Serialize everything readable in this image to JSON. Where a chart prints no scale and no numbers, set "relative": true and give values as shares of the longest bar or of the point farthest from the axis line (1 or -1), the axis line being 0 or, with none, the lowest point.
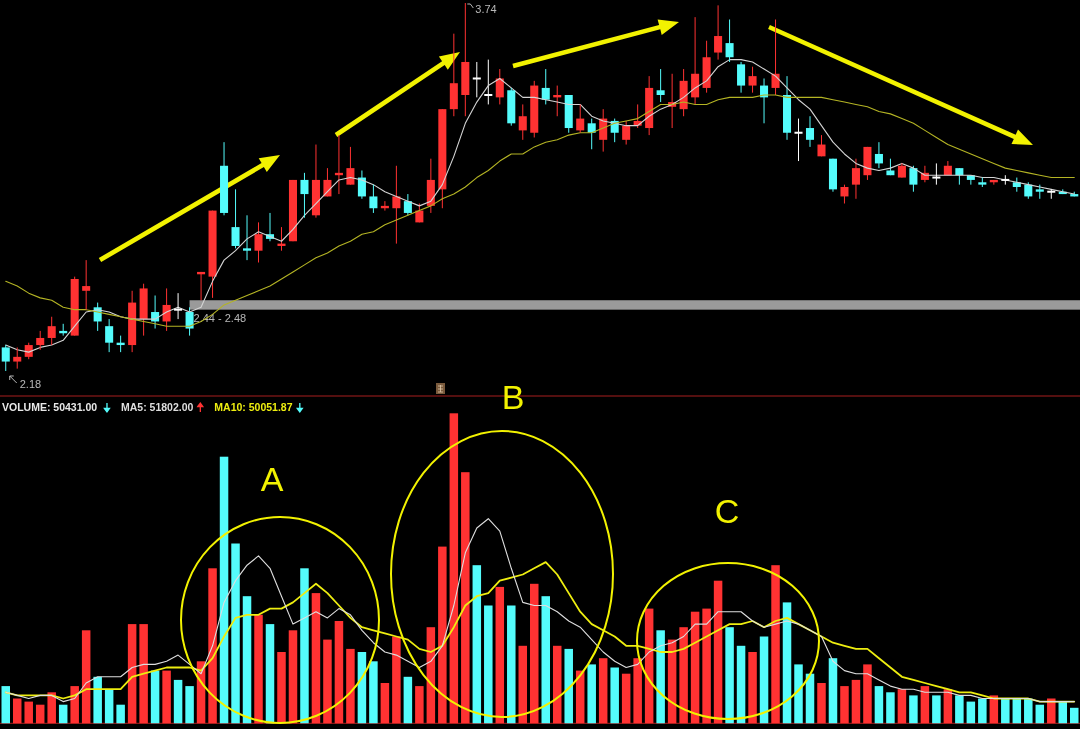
{
  "chart_data": [
    {
      "type": "candlestick",
      "categories": [
        null,
        null,
        null,
        null,
        null,
        null,
        null,
        null,
        null,
        null,
        null,
        null,
        null,
        null,
        null,
        null,
        null,
        null,
        null,
        null,
        null,
        null,
        null,
        null,
        null,
        null,
        null,
        null,
        null,
        null,
        null,
        null,
        null,
        null,
        null,
        null,
        null,
        null,
        null,
        null,
        null,
        null,
        null,
        null,
        null,
        null,
        null,
        null,
        null,
        null,
        null,
        null,
        null,
        null,
        null,
        null,
        null,
        null,
        null,
        null,
        null,
        null,
        null,
        null,
        null,
        null,
        null,
        null,
        null,
        null,
        null,
        null,
        null,
        null,
        null,
        null,
        null,
        null,
        null,
        null,
        null,
        null,
        null,
        null,
        null,
        null,
        null,
        null,
        null,
        null,
        null,
        null,
        null,
        null
      ],
      "ohlc": [
        [
          2.28,
          2.29,
          2.18,
          2.22
        ],
        [
          2.22,
          2.28,
          2.19,
          2.24
        ],
        [
          2.24,
          2.3,
          2.23,
          2.29
        ],
        [
          2.29,
          2.35,
          2.27,
          2.32
        ],
        [
          2.32,
          2.41,
          2.29,
          2.37
        ],
        [
          2.35,
          2.38,
          2.33,
          2.34
        ],
        [
          2.33,
          2.58,
          2.33,
          2.57
        ],
        [
          2.52,
          2.65,
          2.44,
          2.54
        ],
        [
          2.45,
          2.47,
          2.35,
          2.39
        ],
        [
          2.37,
          2.4,
          2.26,
          2.3
        ],
        [
          2.3,
          2.33,
          2.26,
          2.29
        ],
        [
          2.29,
          2.52,
          2.26,
          2.47
        ],
        [
          2.4,
          2.55,
          2.33,
          2.53
        ],
        [
          2.43,
          2.5,
          2.36,
          2.39
        ],
        [
          2.39,
          2.53,
          2.35,
          2.46
        ],
        [
          2.44,
          2.51,
          2.4,
          2.44
        ],
        [
          2.43,
          2.45,
          2.33,
          2.36
        ],
        [
          2.59,
          2.6,
          2.48,
          2.6
        ],
        [
          2.58,
          2.86,
          2.49,
          2.86
        ],
        [
          3.05,
          3.15,
          2.84,
          2.85
        ],
        [
          2.79,
          2.95,
          2.7,
          2.71
        ],
        [
          2.7,
          2.84,
          2.65,
          2.69
        ],
        [
          2.69,
          2.81,
          2.64,
          2.76
        ],
        [
          2.76,
          2.85,
          2.73,
          2.74
        ],
        [
          2.71,
          2.79,
          2.69,
          2.72
        ],
        [
          2.73,
          2.99,
          2.73,
          2.99
        ],
        [
          2.99,
          3.02,
          2.83,
          2.93
        ],
        [
          2.84,
          3.14,
          2.83,
          2.99
        ],
        [
          2.92,
          3.04,
          2.92,
          2.99
        ],
        [
          3.01,
          3.18,
          2.93,
          3.02
        ],
        [
          2.97,
          3.13,
          2.97,
          3.04
        ],
        [
          3.0,
          3.03,
          2.91,
          2.92
        ],
        [
          2.92,
          2.97,
          2.85,
          2.87
        ],
        [
          2.87,
          2.9,
          2.86,
          2.88
        ],
        [
          2.87,
          3.05,
          2.72,
          2.92
        ],
        [
          2.9,
          2.93,
          2.84,
          2.85
        ],
        [
          2.81,
          2.89,
          2.81,
          2.86
        ],
        [
          2.88,
          3.08,
          2.85,
          2.99
        ],
        [
          2.95,
          3.29,
          2.87,
          3.29
        ],
        [
          3.29,
          3.61,
          3.26,
          3.4
        ],
        [
          3.35,
          3.74,
          3.26,
          3.49
        ],
        [
          3.42,
          3.49,
          3.34,
          3.42
        ],
        [
          3.35,
          3.5,
          3.31,
          3.35
        ],
        [
          3.34,
          3.46,
          3.31,
          3.42
        ],
        [
          3.37,
          3.38,
          3.22,
          3.23
        ],
        [
          3.2,
          3.31,
          3.16,
          3.26
        ],
        [
          3.19,
          3.41,
          3.17,
          3.39
        ],
        [
          3.38,
          3.46,
          3.31,
          3.33
        ],
        [
          3.34,
          3.39,
          3.26,
          3.35
        ],
        [
          3.35,
          3.35,
          3.19,
          3.21
        ],
        [
          3.2,
          3.31,
          3.19,
          3.25
        ],
        [
          3.23,
          3.25,
          3.12,
          3.19
        ],
        [
          3.16,
          3.29,
          3.11,
          3.25
        ],
        [
          3.24,
          3.25,
          3.15,
          3.19
        ],
        [
          3.16,
          3.24,
          3.14,
          3.22
        ],
        [
          3.22,
          3.31,
          3.21,
          3.24
        ],
        [
          3.21,
          3.43,
          3.18,
          3.38
        ],
        [
          3.37,
          3.46,
          3.32,
          3.35
        ],
        [
          3.3,
          3.44,
          3.21,
          3.32
        ],
        [
          3.29,
          3.46,
          3.26,
          3.41
        ],
        [
          3.34,
          3.68,
          3.31,
          3.44
        ],
        [
          3.38,
          3.58,
          3.36,
          3.51
        ],
        [
          3.53,
          3.73,
          3.5,
          3.6
        ],
        [
          3.57,
          3.67,
          3.49,
          3.51
        ],
        [
          3.48,
          3.49,
          3.36,
          3.39
        ],
        [
          3.39,
          3.47,
          3.36,
          3.43
        ],
        [
          3.39,
          3.42,
          3.23,
          3.34
        ],
        [
          3.38,
          3.67,
          3.35,
          3.44
        ],
        [
          3.35,
          3.43,
          3.16,
          3.19
        ],
        [
          3.19,
          3.25,
          3.07,
          3.19
        ],
        [
          3.21,
          3.26,
          3.13,
          3.16
        ],
        [
          3.09,
          3.18,
          3.09,
          3.14
        ],
        [
          3.08,
          3.08,
          2.94,
          2.95
        ],
        [
          2.92,
          2.97,
          2.89,
          2.96
        ],
        [
          2.97,
          3.08,
          2.91,
          3.04
        ],
        [
          3.01,
          3.13,
          2.99,
          3.13
        ],
        [
          3.1,
          3.15,
          3.04,
          3.06
        ],
        [
          3.03,
          3.08,
          3.01,
          3.01
        ],
        [
          3.0,
          3.06,
          3.0,
          3.05
        ],
        [
          3.04,
          3.05,
          2.94,
          2.97
        ],
        [
          2.99,
          3.05,
          2.98,
          3.02
        ],
        [
          3.0,
          3.06,
          2.97,
          3.0
        ],
        [
          3.01,
          3.07,
          3.01,
          3.05
        ],
        [
          3.04,
          3.04,
          2.97,
          3.01
        ],
        [
          3.01,
          3.01,
          2.97,
          2.99
        ],
        [
          2.98,
          3.0,
          2.96,
          2.97
        ],
        [
          2.98,
          2.99,
          2.97,
          2.99
        ],
        [
          2.99,
          3.01,
          2.97,
          2.99
        ],
        [
          2.98,
          3.0,
          2.94,
          2.96
        ],
        [
          2.97,
          2.98,
          2.91,
          2.92
        ],
        [
          2.95,
          2.97,
          2.91,
          2.94
        ],
        [
          2.94,
          2.95,
          2.91,
          2.94
        ],
        [
          2.94,
          2.95,
          2.93,
          2.93
        ],
        [
          2.93,
          2.94,
          2.92,
          2.92
        ]
      ],
      "colors": [
        "#54fcfc",
        "#ff3232",
        "#ff3232",
        "#ff3232",
        "#ff3232",
        "#54fcfc",
        "#ff3232",
        "#ff3232",
        "#54fcfc",
        "#54fcfc",
        "#54fcfc",
        "#ff3232",
        "#ff3232",
        "#54fcfc",
        "#ff3232",
        "#ffffff",
        "#54fcfc",
        "#ff3232",
        "#ff3232",
        "#54fcfc",
        "#54fcfc",
        "#54fcfc",
        "#ff3232",
        "#54fcfc",
        "#ff3232",
        "#ff3232",
        "#54fcfc",
        "#ff3232",
        "#ff3232",
        "#ff3232",
        "#ff3232",
        "#54fcfc",
        "#54fcfc",
        "#ff3232",
        "#ff3232",
        "#54fcfc",
        "#ff3232",
        "#ff3232",
        "#ff3232",
        "#ff3232",
        "#ff3232",
        "#ffffff",
        "#ffffff",
        "#ff3232",
        "#54fcfc",
        "#ff3232",
        "#ff3232",
        "#54fcfc",
        "#ff3232",
        "#54fcfc",
        "#ff3232",
        "#54fcfc",
        "#ff3232",
        "#54fcfc",
        "#ff3232",
        "#ff3232",
        "#ff3232",
        "#54fcfc",
        "#ff3232",
        "#ff3232",
        "#ff3232",
        "#ff3232",
        "#ff3232",
        "#54fcfc",
        "#54fcfc",
        "#ff3232",
        "#54fcfc",
        "#ff3232",
        "#54fcfc",
        "#ffffff",
        "#54fcfc",
        "#ff3232",
        "#54fcfc",
        "#ff3232",
        "#ff3232",
        "#ff3232",
        "#54fcfc",
        "#54fcfc",
        "#ff3232",
        "#54fcfc",
        "#ff3232",
        "#ffffff",
        "#ff3232",
        "#54fcfc",
        "#54fcfc",
        "#54fcfc",
        "#ff3232",
        "#ffffff",
        "#54fcfc",
        "#54fcfc",
        "#54fcfc",
        "#ffffff",
        "#54fcfc",
        "#54fcfc"
      ],
      "series": [
        {
          "type": "line",
          "color": "#d4d4d4",
          "values": [
            2.29,
            2.27,
            2.26,
            2.28,
            2.29,
            2.31,
            2.37,
            2.43,
            2.44,
            2.43,
            2.41,
            2.4,
            2.4,
            2.4,
            2.43,
            2.45,
            2.43,
            2.45,
            2.56,
            2.65,
            2.69,
            2.74,
            2.77,
            2.75,
            2.73,
            2.78,
            2.84,
            2.89,
            2.94,
            2.99,
            3.0,
            2.99,
            2.97,
            2.94,
            2.92,
            2.9,
            2.88,
            2.9,
            2.97,
            3.09,
            3.23,
            3.32,
            3.39,
            3.42,
            3.38,
            3.34,
            3.34,
            3.33,
            3.32,
            3.31,
            3.31,
            3.26,
            3.24,
            3.23,
            3.22,
            3.22,
            3.26,
            3.29,
            3.31,
            3.34,
            3.38,
            3.41,
            3.47,
            3.5,
            3.5,
            3.49,
            3.46,
            3.43,
            3.38,
            3.33,
            3.29,
            3.22,
            3.15,
            3.1,
            3.06,
            3.04,
            3.03,
            3.04,
            3.06,
            3.04,
            3.01,
            3.01,
            3.01,
            3.01,
            3.01,
            3.0,
            3.0,
            2.99,
            2.98,
            2.97,
            2.96,
            2.95,
            2.94,
            2.93
          ]
        },
        {
          "type": "line",
          "color": "#b4b424",
          "values": [
            2.56,
            2.54,
            2.51,
            2.49,
            2.48,
            2.45,
            2.44,
            2.44,
            2.43,
            2.42,
            2.41,
            2.4,
            2.39,
            2.38,
            2.37,
            2.37,
            2.37,
            2.39,
            2.42,
            2.46,
            2.48,
            2.5,
            2.52,
            2.54,
            2.57,
            2.6,
            2.63,
            2.66,
            2.68,
            2.71,
            2.73,
            2.76,
            2.77,
            2.8,
            2.82,
            2.84,
            2.86,
            2.88,
            2.91,
            2.93,
            2.96,
            3.0,
            3.03,
            3.07,
            3.1,
            3.1,
            3.13,
            3.15,
            3.16,
            3.18,
            3.19,
            3.19,
            3.21,
            3.23,
            3.24,
            3.25,
            3.28,
            3.31,
            3.31,
            3.32,
            3.31,
            3.31,
            3.33,
            3.34,
            3.34,
            3.34,
            3.35,
            3.35,
            3.34,
            3.34,
            3.34,
            3.34,
            3.33,
            3.32,
            3.31,
            3.3,
            3.28,
            3.27,
            3.25,
            3.23,
            3.2,
            3.17,
            3.14,
            3.12,
            3.1,
            3.08,
            3.06,
            3.04,
            3.03,
            3.02,
            3.01,
            3.0,
            3.0,
            3.0
          ]
        }
      ],
      "bands": [
        {
          "axis": "y",
          "from": 2.44,
          "to": 2.48,
          "label": "2.44 - 2.48",
          "color": "#9a9a9a"
        }
      ],
      "annotations": [
        "3.74",
        "2.18"
      ]
    },
    {
      "type": "bar",
      "relative": true,
      "title": "VOLUME: 50431.00",
      "categories": [
        null,
        null,
        null,
        null,
        null,
        null,
        null,
        null,
        null,
        null,
        null,
        null,
        null,
        null,
        null,
        null,
        null,
        null,
        null,
        null,
        null,
        null,
        null,
        null,
        null,
        null,
        null,
        null,
        null,
        null,
        null,
        null,
        null,
        null,
        null,
        null,
        null,
        null,
        null,
        null,
        null,
        null,
        null,
        null,
        null,
        null,
        null,
        null,
        null,
        null,
        null,
        null,
        null,
        null,
        null,
        null,
        null,
        null,
        null,
        null,
        null,
        null,
        null,
        null,
        null,
        null,
        null,
        null,
        null,
        null,
        null,
        null,
        null,
        null,
        null,
        null,
        null,
        null,
        null,
        null,
        null,
        null,
        null,
        null,
        null,
        null,
        null,
        null,
        null,
        null,
        null,
        null,
        null,
        null
      ],
      "series": [
        {
          "type": "bar",
          "colors": [
            "#54fcfc",
            "#ff3232",
            "#ff3232",
            "#ff3232",
            "#ff3232",
            "#54fcfc",
            "#ff3232",
            "#ff3232",
            "#54fcfc",
            "#54fcfc",
            "#54fcfc",
            "#ff3232",
            "#ff3232",
            "#54fcfc",
            "#ff3232",
            "#54fcfc",
            "#54fcfc",
            "#ff3232",
            "#ff3232",
            "#54fcfc",
            "#54fcfc",
            "#54fcfc",
            "#ff3232",
            "#54fcfc",
            "#ff3232",
            "#ff3232",
            "#54fcfc",
            "#ff3232",
            "#ff3232",
            "#ff3232",
            "#ff3232",
            "#54fcfc",
            "#54fcfc",
            "#ff3232",
            "#ff3232",
            "#54fcfc",
            "#ff3232",
            "#ff3232",
            "#ff3232",
            "#ff3232",
            "#ff3232",
            "#54fcfc",
            "#54fcfc",
            "#ff3232",
            "#54fcfc",
            "#ff3232",
            "#ff3232",
            "#54fcfc",
            "#ff3232",
            "#54fcfc",
            "#ff3232",
            "#54fcfc",
            "#ff3232",
            "#54fcfc",
            "#ff3232",
            "#ff3232",
            "#ff3232",
            "#54fcfc",
            "#ff3232",
            "#ff3232",
            "#ff3232",
            "#ff3232",
            "#ff3232",
            "#54fcfc",
            "#54fcfc",
            "#ff3232",
            "#54fcfc",
            "#ff3232",
            "#54fcfc",
            "#54fcfc",
            "#54fcfc",
            "#ff3232",
            "#54fcfc",
            "#ff3232",
            "#ff3232",
            "#ff3232",
            "#54fcfc",
            "#54fcfc",
            "#ff3232",
            "#54fcfc",
            "#ff3232",
            "#54fcfc",
            "#ff3232",
            "#54fcfc",
            "#54fcfc",
            "#54fcfc",
            "#ff3232",
            "#54fcfc",
            "#54fcfc",
            "#54fcfc",
            "#54fcfc",
            "#ff3232",
            "#54fcfc",
            "#54fcfc"
          ],
          "values": [
            0.12,
            0.08,
            0.07,
            0.06,
            0.1,
            0.06,
            0.12,
            0.3,
            0.15,
            0.11,
            0.06,
            0.32,
            0.32,
            0.17,
            0.17,
            0.14,
            0.12,
            0.2,
            0.5,
            0.86,
            0.58,
            0.41,
            0.35,
            0.32,
            0.23,
            0.3,
            0.5,
            0.42,
            0.27,
            0.33,
            0.24,
            0.23,
            0.2,
            0.13,
            0.28,
            0.15,
            0.12,
            0.31,
            0.57,
            1,
            0.81,
            0.51,
            0.38,
            0.44,
            0.38,
            0.25,
            0.45,
            0.41,
            0.25,
            0.24,
            0.17,
            0.19,
            0.21,
            0.18,
            0.16,
            0.21,
            0.37,
            0.3,
            0.27,
            0.31,
            0.36,
            0.37,
            0.46,
            0.31,
            0.25,
            0.23,
            0.28,
            0.51,
            0.39,
            0.19,
            0.16,
            0.13,
            0.21,
            0.12,
            0.14,
            0.19,
            0.12,
            0.1,
            0.11,
            0.09,
            0.12,
            0.09,
            0.11,
            0.09,
            0.07,
            0.08,
            0.09,
            0.08,
            0.08,
            0.08,
            0.06,
            0.08,
            0.07,
            0.05
          ]
        },
        {
          "type": "line",
          "name": "MA5: 51802.00",
          "color": "#dedede",
          "values": [
            0.1,
            0.09,
            0.08,
            0.09,
            0.09,
            0.07,
            0.08,
            0.13,
            0.15,
            0.15,
            0.15,
            0.18,
            0.19,
            0.19,
            0.2,
            0.22,
            0.19,
            0.16,
            0.25,
            0.39,
            0.46,
            0.51,
            0.54,
            0.5,
            0.41,
            0.32,
            0.34,
            0.36,
            0.34,
            0.37,
            0.35,
            0.3,
            0.26,
            0.23,
            0.22,
            0.2,
            0.18,
            0.2,
            0.25,
            0.38,
            0.55,
            0.63,
            0.66,
            0.62,
            0.5,
            0.39,
            0.38,
            0.38,
            0.36,
            0.33,
            0.31,
            0.27,
            0.23,
            0.2,
            0.18,
            0.19,
            0.23,
            0.25,
            0.26,
            0.28,
            0.32,
            0.32,
            0.36,
            0.36,
            0.36,
            0.33,
            0.31,
            0.32,
            0.33,
            0.32,
            0.3,
            0.28,
            0.2,
            0.17,
            0.16,
            0.16,
            0.14,
            0.12,
            0.11,
            0.11,
            0.1,
            0.1,
            0.1,
            0.09,
            0.09,
            0.08,
            0.08,
            0.08,
            0.08,
            0.08,
            0.07,
            0.07,
            0.07,
            0.07
          ]
        },
        {
          "type": "line",
          "name": "MA10: 50051.87",
          "color": "#eeee10",
          "values": [
            0.1,
            0.09,
            0.09,
            0.09,
            0.09,
            0.08,
            0.09,
            0.11,
            0.11,
            0.11,
            0.11,
            0.15,
            0.16,
            0.17,
            0.18,
            0.18,
            0.18,
            0.17,
            0.21,
            0.28,
            0.34,
            0.35,
            0.35,
            0.37,
            0.37,
            0.39,
            0.42,
            0.45,
            0.42,
            0.38,
            0.34,
            0.31,
            0.3,
            0.29,
            0.28,
            0.27,
            0.24,
            0.23,
            0.25,
            0.31,
            0.38,
            0.41,
            0.42,
            0.46,
            0.47,
            0.48,
            0.5,
            0.52,
            0.48,
            0.42,
            0.36,
            0.32,
            0.3,
            0.28,
            0.25,
            0.25,
            0.24,
            0.23,
            0.23,
            0.24,
            0.26,
            0.28,
            0.3,
            0.32,
            0.32,
            0.33,
            0.31,
            0.33,
            0.34,
            0.32,
            0.3,
            0.28,
            0.26,
            0.25,
            0.24,
            0.24,
            0.21,
            0.18,
            0.15,
            0.14,
            0.13,
            0.12,
            0.11,
            0.1,
            0.1,
            0.09,
            0.08,
            0.08,
            0.08,
            0.08,
            0.07,
            0.07,
            0.07,
            0.07
          ]
        }
      ],
      "legend": "top left",
      "annotations": [
        "A",
        "B",
        "C"
      ]
    }
  ]
}
